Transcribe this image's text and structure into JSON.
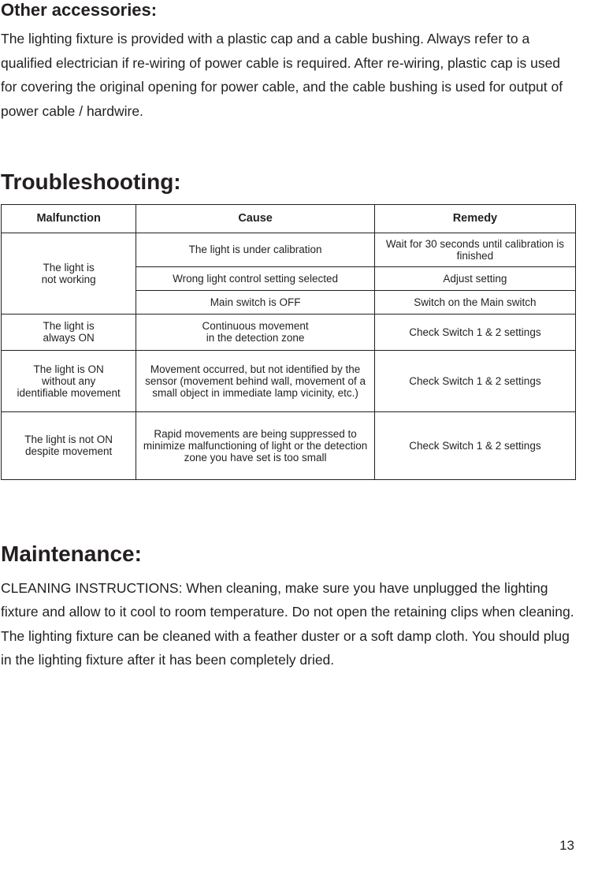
{
  "sections": {
    "accessories": {
      "heading": "Other accessories:",
      "body": "The lighting fixture is provided with a plastic cap and a cable bushing.  Always refer to a qualified electrician if re-wiring of power cable is required.   After re-wiring, plastic cap is used for covering the original opening for power cable, and the cable bushing is used for output of power cable / hardwire."
    },
    "troubleshooting": {
      "heading": "Troubleshooting:",
      "table": {
        "headers": {
          "c1": "Malfunction",
          "c2": "Cause",
          "c3": "Remedy"
        },
        "rows": [
          {
            "malfunction": "The light is\nnot working",
            "items": [
              {
                "cause": "The light is under calibration",
                "remedy": "Wait for 30 seconds until calibration is finished"
              },
              {
                "cause": "Wrong light control setting selected",
                "remedy": "Adjust setting"
              },
              {
                "cause": "Main switch is OFF",
                "remedy": "Switch on the Main switch"
              }
            ]
          },
          {
            "malfunction": "The light is\nalways ON",
            "items": [
              {
                "cause": "Continuous movement\nin the detection zone",
                "remedy": "Check Switch 1 & 2 settings"
              }
            ]
          },
          {
            "malfunction": "The light is ON\nwithout any\nidentifiable movement",
            "items": [
              {
                "cause": "Movement occurred, but not identified by the sensor (movement behind wall, movement of a small object in immediate lamp vicinity, etc.)",
                "remedy": "Check Switch 1 & 2 settings"
              }
            ]
          },
          {
            "malfunction": "The light is not ON\ndespite movement",
            "items": [
              {
                "cause": "Rapid movements are being suppressed to minimize malfunctioning of light or the detection zone you have set is too small",
                "remedy": "Check Switch 1 & 2 settings"
              }
            ]
          }
        ]
      }
    },
    "maintenance": {
      "heading": "Maintenance:",
      "body": "CLEANING INSTRUCTIONS:   When cleaning, make sure you have unplugged the lighting fixture and allow to it cool to room temperature. Do not open the retaining clips when cleaning. The lighting fixture can be cleaned with a feather duster or a soft damp cloth. You should plug in the lighting fixture after it has been completely dried."
    }
  },
  "page_number": "13"
}
